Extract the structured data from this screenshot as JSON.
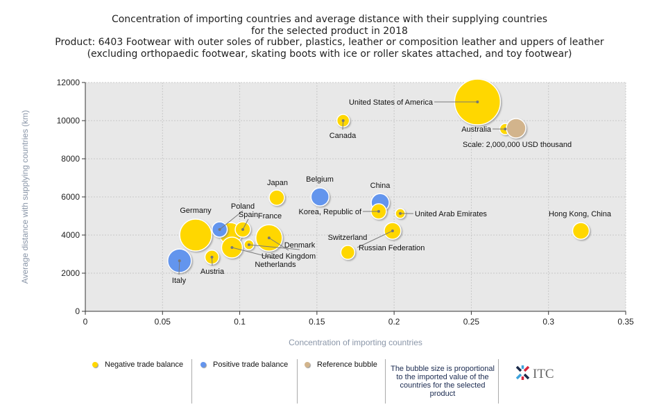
{
  "title_lines": [
    "Concentration of importing countries and average distance with their supplying countries",
    "for the selected product in 2018",
    "Product: 6403 Footwear with outer soles of rubber, plastics, leather or composition leather and uppers of leather",
    "(excluding orthopaedic footwear, skating boots with ice or roller skates attached, and toy footwear)"
  ],
  "chart_data": {
    "type": "scatter",
    "xlabel": "Concentration of importing countries",
    "ylabel": "Average distance with supplying countries (km)",
    "xlim": [
      0,
      0.35
    ],
    "ylim": [
      0,
      12000
    ],
    "x_ticks": [
      "0",
      "0.05",
      "0.1",
      "0.15",
      "0.2",
      "0.25",
      "0.3",
      "0.35"
    ],
    "y_ticks": [
      "0",
      "2000",
      "4000",
      "6000",
      "8000",
      "10000",
      "12000"
    ],
    "grid": true,
    "colors": {
      "negative": "#ffd700",
      "positive": "#6495ed",
      "reference": "#d2b48c",
      "plot_bg": "#e8e8e8"
    },
    "reference": {
      "label": "Scale: 2,000,000 USD thousand",
      "x": 0.279,
      "y": 9600,
      "value": 2000000
    },
    "points": [
      {
        "name": "United States of America",
        "x": 0.254,
        "y": 10980,
        "value": 11100000,
        "balance": "negative"
      },
      {
        "name": "Australia",
        "x": 0.272,
        "y": 9560,
        "value": 650000,
        "balance": "negative"
      },
      {
        "name": "Canada",
        "x": 0.167,
        "y": 10000,
        "value": 830000,
        "balance": "negative"
      },
      {
        "name": "Japan",
        "x": 0.124,
        "y": 5960,
        "value": 1230000,
        "balance": "negative"
      },
      {
        "name": "Belgium",
        "x": 0.152,
        "y": 6000,
        "value": 1720000,
        "balance": "positive"
      },
      {
        "name": "China",
        "x": 0.191,
        "y": 5700,
        "value": 1720000,
        "balance": "positive"
      },
      {
        "name": "Korea, Republic of",
        "x": 0.19,
        "y": 5240,
        "value": 1230000,
        "balance": "negative"
      },
      {
        "name": "United Arab Emirates",
        "x": 0.204,
        "y": 5130,
        "value": 500000,
        "balance": "negative"
      },
      {
        "name": "Hong Kong, China",
        "x": 0.321,
        "y": 4220,
        "value": 1470000,
        "balance": "negative"
      },
      {
        "name": "Russian Federation",
        "x": 0.199,
        "y": 4220,
        "value": 1470000,
        "balance": "negative"
      },
      {
        "name": "Switzerland",
        "x": 0.17,
        "y": 3090,
        "value": 1020000,
        "balance": "negative"
      },
      {
        "name": "Germany",
        "x": 0.0715,
        "y": 4000,
        "value": 5400000,
        "balance": "negative"
      },
      {
        "name": "Italy",
        "x": 0.061,
        "y": 2650,
        "value": 2950000,
        "balance": "positive"
      },
      {
        "name": "Austria",
        "x": 0.082,
        "y": 2840,
        "value": 1020000,
        "balance": "negative"
      },
      {
        "name": "France",
        "x": 0.094,
        "y": 4070,
        "value": 2600000,
        "balance": "negative"
      },
      {
        "name": "Poland",
        "x": 0.087,
        "y": 4290,
        "value": 1230000,
        "balance": "positive"
      },
      {
        "name": "Spain",
        "x": 0.102,
        "y": 4290,
        "value": 1230000,
        "balance": "negative"
      },
      {
        "name": "Netherlands",
        "x": 0.095,
        "y": 3345,
        "value": 2300000,
        "balance": "negative"
      },
      {
        "name": "United Kingdom",
        "x": 0.119,
        "y": 3850,
        "value": 3700000,
        "balance": "negative"
      },
      {
        "name": "Denmark",
        "x": 0.106,
        "y": 3490,
        "value": 500000,
        "balance": "negative"
      }
    ]
  },
  "legend": {
    "negative": "Negative trade balance",
    "positive": "Positive trade balance",
    "reference": "Reference bubble",
    "note": "The bubble size is proportional to the imported value of the countries for the selected product",
    "logo": "ITC"
  }
}
